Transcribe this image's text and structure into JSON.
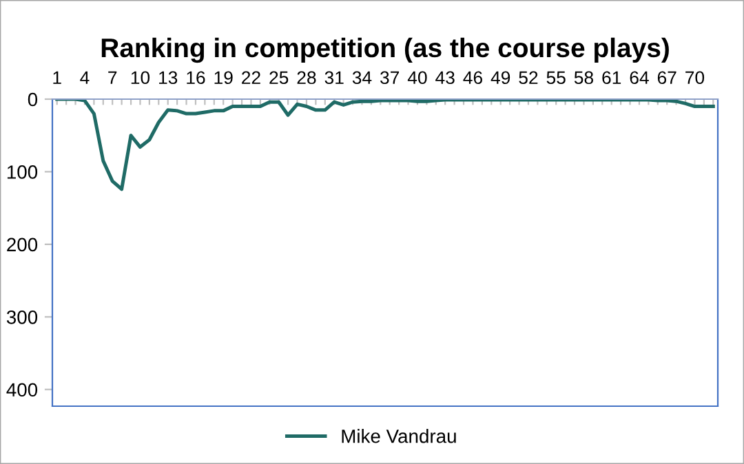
{
  "chart_data": {
    "type": "line",
    "title": "Ranking in competition (as the course plays)",
    "categories": [
      "1",
      null,
      null,
      "4",
      null,
      null,
      "7",
      null,
      null,
      "10",
      null,
      null,
      "13",
      null,
      null,
      "16",
      null,
      null,
      "19",
      null,
      null,
      "22",
      null,
      null,
      "25",
      null,
      null,
      "28",
      null,
      null,
      "31",
      null,
      null,
      "34",
      null,
      null,
      "37",
      null,
      null,
      "40",
      null,
      null,
      "43",
      null,
      null,
      "46",
      null,
      null,
      "49",
      null,
      null,
      "52",
      null,
      null,
      "55",
      null,
      null,
      "58",
      null,
      null,
      "61",
      null,
      null,
      "64",
      null,
      null,
      "67",
      null,
      null,
      "70",
      null,
      null
    ],
    "series": [
      {
        "name": "Mike Vandrau",
        "color": "#1f6b66",
        "values": [
          0,
          0,
          0,
          2,
          20,
          85,
          113,
          124,
          50,
          66,
          56,
          32,
          15,
          16,
          20,
          20,
          18,
          16,
          16,
          10,
          10,
          10,
          10,
          4,
          4,
          22,
          7,
          10,
          15,
          15,
          4,
          8,
          4,
          3,
          3,
          2,
          2,
          2,
          2,
          3,
          3,
          2,
          1,
          1,
          1,
          1,
          1,
          1,
          1,
          1,
          1,
          1,
          1,
          1,
          1,
          1,
          1,
          1,
          1,
          1,
          1,
          1,
          1,
          1,
          1,
          2,
          2,
          3,
          6,
          10,
          10,
          10
        ]
      }
    ],
    "ylim": [
      423,
      0
    ],
    "yticks": [
      0,
      100,
      200,
      300,
      400
    ],
    "grid": false,
    "legend": "bottom",
    "marker": "none",
    "line_style": "solid"
  }
}
